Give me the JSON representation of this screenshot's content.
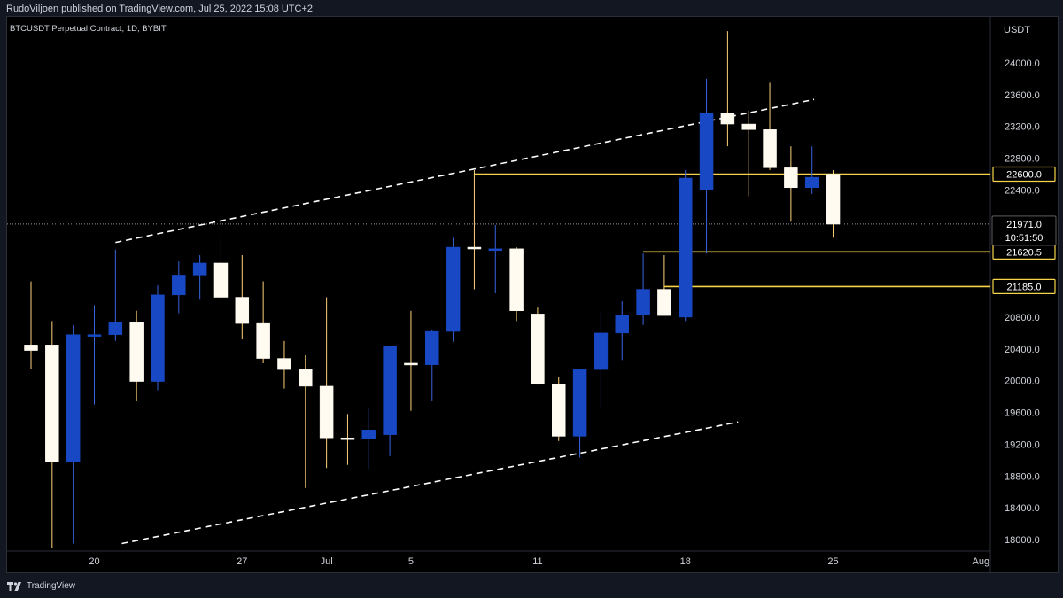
{
  "header": {
    "published_text": "RudoViljoen published on TradingView.com, Jul 25, 2022 15:08 UTC+2",
    "symbol_title": "BTCUSDT Perpetual Contract, 1D, BYBIT"
  },
  "footer": {
    "brand": "TradingView"
  },
  "colors": {
    "up": "#1848c4",
    "down": "#fffbf0",
    "wick": "#ffd27a",
    "wick_blue": "#3a64e0",
    "level": "#f6d44a",
    "trend": "#ffffff",
    "background": "#000000",
    "axis_text": "#d1d4dc"
  },
  "chart_data": {
    "type": "candlestick",
    "y_axis_unit": "USDT",
    "ylim": [
      17900,
      24600
    ],
    "y_ticks": [
      18000,
      18400,
      18800,
      19200,
      19600,
      20000,
      20400,
      20800,
      21200,
      21600,
      22000,
      22400,
      22800,
      23200,
      23600,
      24000
    ],
    "y_tick_labels": [
      "18000.0",
      "18400.0",
      "18800.0",
      "19200.0",
      "19600.0",
      "20000.0",
      "20400.0",
      "20800.0",
      "21200.0",
      "21600.0",
      "22000.0",
      "22400.0",
      "22800.0",
      "23200.0",
      "23600.0",
      "24000.0"
    ],
    "x_labels": [
      {
        "day": 3,
        "text": "20"
      },
      {
        "day": 10,
        "text": "27"
      },
      {
        "day": 14,
        "text": "Jul"
      },
      {
        "day": 18,
        "text": "5"
      },
      {
        "day": 24,
        "text": "11"
      },
      {
        "day": 31,
        "text": "18"
      },
      {
        "day": 38,
        "text": "25"
      },
      {
        "day": 45,
        "text": "Aug"
      }
    ],
    "candles": [
      {
        "day": 0,
        "o": 20450,
        "h": 21250,
        "l": 20150,
        "c": 20380
      },
      {
        "day": 1,
        "o": 20450,
        "h": 20750,
        "l": 17900,
        "c": 18980
      },
      {
        "day": 2,
        "o": 18980,
        "h": 20700,
        "l": 17950,
        "c": 20580
      },
      {
        "day": 3,
        "o": 20580,
        "h": 20950,
        "l": 19700,
        "c": 20580
      },
      {
        "day": 4,
        "o": 20580,
        "h": 21650,
        "l": 20500,
        "c": 20730
      },
      {
        "day": 5,
        "o": 20730,
        "h": 20880,
        "l": 19740,
        "c": 19990
      },
      {
        "day": 6,
        "o": 19990,
        "h": 21200,
        "l": 19880,
        "c": 21080
      },
      {
        "day": 7,
        "o": 21080,
        "h": 21500,
        "l": 20850,
        "c": 21330
      },
      {
        "day": 8,
        "o": 21330,
        "h": 21580,
        "l": 21020,
        "c": 21480
      },
      {
        "day": 9,
        "o": 21480,
        "h": 21800,
        "l": 20980,
        "c": 21050
      },
      {
        "day": 10,
        "o": 21050,
        "h": 21580,
        "l": 20520,
        "c": 20720
      },
      {
        "day": 11,
        "o": 20720,
        "h": 21250,
        "l": 20220,
        "c": 20280
      },
      {
        "day": 12,
        "o": 20280,
        "h": 20500,
        "l": 19900,
        "c": 20140
      },
      {
        "day": 13,
        "o": 20140,
        "h": 20320,
        "l": 18650,
        "c": 19930
      },
      {
        "day": 14,
        "o": 19930,
        "h": 21050,
        "l": 18900,
        "c": 19280
      },
      {
        "day": 15,
        "o": 19280,
        "h": 19580,
        "l": 18940,
        "c": 19270
      },
      {
        "day": 16,
        "o": 19270,
        "h": 19650,
        "l": 18890,
        "c": 19380
      },
      {
        "day": 17,
        "o": 19320,
        "h": 20440,
        "l": 19050,
        "c": 20440
      },
      {
        "day": 18,
        "o": 20220,
        "h": 20880,
        "l": 19620,
        "c": 20200
      },
      {
        "day": 19,
        "o": 20200,
        "h": 20640,
        "l": 19740,
        "c": 20620
      },
      {
        "day": 20,
        "o": 20620,
        "h": 21800,
        "l": 20490,
        "c": 21680
      },
      {
        "day": 21,
        "o": 21680,
        "h": 22650,
        "l": 21150,
        "c": 21660
      },
      {
        "day": 22,
        "o": 21660,
        "h": 21960,
        "l": 21100,
        "c": 21660
      },
      {
        "day": 23,
        "o": 21660,
        "h": 21680,
        "l": 20750,
        "c": 20880
      },
      {
        "day": 24,
        "o": 20840,
        "h": 20920,
        "l": 19950,
        "c": 19960
      },
      {
        "day": 25,
        "o": 19960,
        "h": 20050,
        "l": 19240,
        "c": 19300
      },
      {
        "day": 26,
        "o": 19300,
        "h": 20140,
        "l": 19030,
        "c": 20140
      },
      {
        "day": 27,
        "o": 20140,
        "h": 20880,
        "l": 19650,
        "c": 20600
      },
      {
        "day": 28,
        "o": 20600,
        "h": 21000,
        "l": 20260,
        "c": 20830
      },
      {
        "day": 29,
        "o": 20830,
        "h": 21600,
        "l": 20700,
        "c": 21150
      },
      {
        "day": 30,
        "o": 21150,
        "h": 21580,
        "l": 20820,
        "c": 20820
      },
      {
        "day": 31,
        "o": 20800,
        "h": 22650,
        "l": 20750,
        "c": 22550
      },
      {
        "day": 32,
        "o": 22400,
        "h": 23800,
        "l": 21600,
        "c": 23370
      },
      {
        "day": 33,
        "o": 23370,
        "h": 24400,
        "l": 22950,
        "c": 23230
      },
      {
        "day": 34,
        "o": 23230,
        "h": 23400,
        "l": 22320,
        "c": 23160
      },
      {
        "day": 35,
        "o": 23160,
        "h": 23750,
        "l": 22650,
        "c": 22680
      },
      {
        "day": 36,
        "o": 22680,
        "h": 22950,
        "l": 22000,
        "c": 22430
      },
      {
        "day": 37,
        "o": 22430,
        "h": 22950,
        "l": 22350,
        "c": 22560
      },
      {
        "day": 38,
        "o": 22600,
        "h": 22650,
        "l": 21800,
        "c": 21970
      }
    ],
    "horizontal_levels": [
      {
        "price": 22600,
        "from_day": 21,
        "label": "22600.0"
      },
      {
        "price": 21620.5,
        "from_day": 29,
        "label": "21620.5"
      },
      {
        "price": 21185,
        "from_day": 30,
        "label": "21185.0"
      }
    ],
    "trendlines": [
      {
        "from": {
          "day": 4,
          "price": 21740
        },
        "to": {
          "day": 37.1,
          "price": 23540
        }
      },
      {
        "from": {
          "day": 4.3,
          "price": 17950
        },
        "to": {
          "day": 33.5,
          "price": 19480
        }
      }
    ],
    "last_price": {
      "price": 21971,
      "label": "21971.0",
      "countdown": "10:51:50"
    }
  }
}
